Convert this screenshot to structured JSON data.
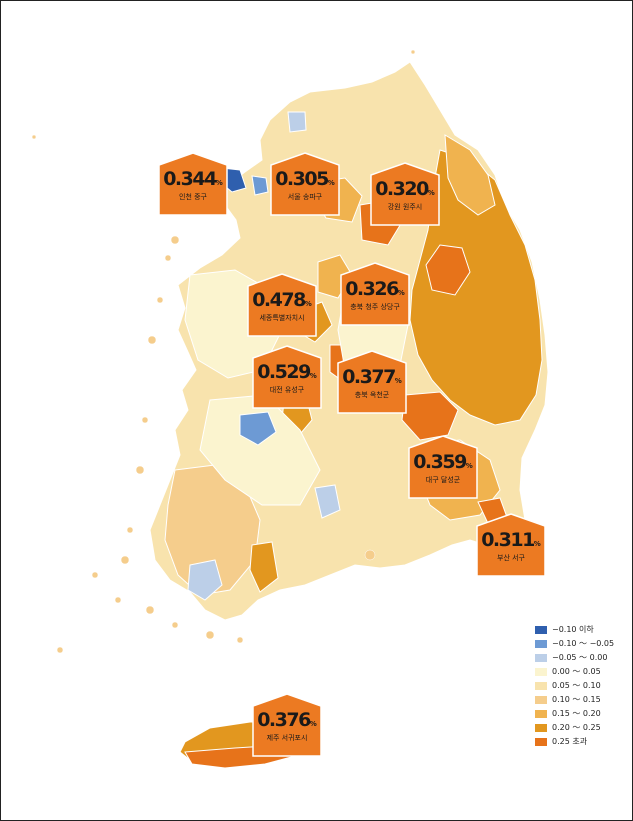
{
  "callouts": [
    {
      "value": "0.344",
      "unit": "%",
      "label": "인천 중구"
    },
    {
      "value": "0.305",
      "unit": "%",
      "label": "서울 송파구"
    },
    {
      "value": "0.320",
      "unit": "%",
      "label": "강원 원주시"
    },
    {
      "value": "0.326",
      "unit": "%",
      "label": "충북 청주 상당구"
    },
    {
      "value": "0.478",
      "unit": "%",
      "label": "세종특별자치시"
    },
    {
      "value": "0.529",
      "unit": "%",
      "label": "대전 유성구"
    },
    {
      "value": "0.377",
      "unit": "%",
      "label": "충북 옥천군"
    },
    {
      "value": "0.359",
      "unit": "%",
      "label": "대구 달성군"
    },
    {
      "value": "0.311",
      "unit": "%",
      "label": "부산 서구"
    },
    {
      "value": "0.376",
      "unit": "%",
      "label": "제주 서귀포시"
    }
  ],
  "legend": [
    {
      "label": "−0.10 이하",
      "color": "#2f5fae"
    },
    {
      "label": "−0.10 ～ −0.05",
      "color": "#6d9ad4"
    },
    {
      "label": "−0.05 ～ 0.00",
      "color": "#bccfe8"
    },
    {
      "label": "0.00 ～ 0.05",
      "color": "#fbf4cf"
    },
    {
      "label": "0.05 ～ 0.10",
      "color": "#f8e3ad"
    },
    {
      "label": "0.10 ～ 0.15",
      "color": "#f5cd8c"
    },
    {
      "label": "0.15 ～ 0.20",
      "color": "#f0b34f"
    },
    {
      "label": "0.20 ～ 0.25",
      "color": "#e2971f"
    },
    {
      "label": "0.25 초과",
      "color": "#e7731a"
    }
  ],
  "colors": {
    "callout_fill": "#ec7a22",
    "callout_border": "#ffffff"
  }
}
